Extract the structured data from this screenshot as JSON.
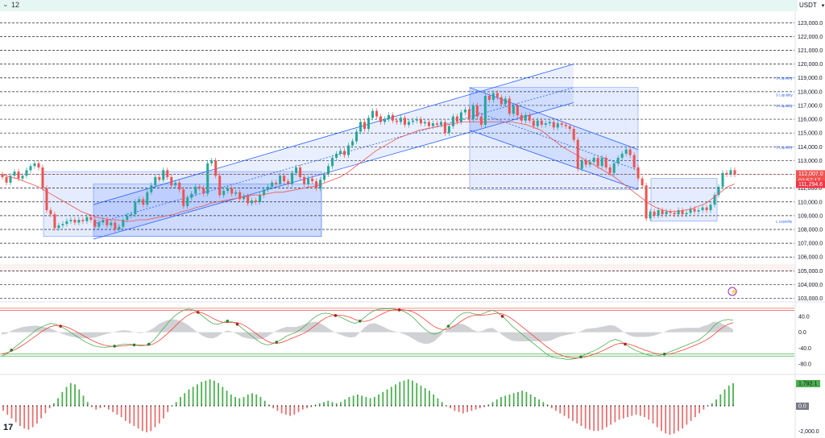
{
  "toolbar": {
    "interval": "12",
    "quote_currency": "USDT"
  },
  "colors": {
    "up": "#26a69a",
    "down": "#ef5350",
    "channel": "#2962ff",
    "k_line": "#4caf50",
    "d_line": "#f44336",
    "hist_up": "#4caf50",
    "hist_down": "#e57373",
    "price_badge": "#ef5350",
    "ma_badge": "#f23645"
  },
  "price_axis": {
    "ticks": [
      "123,000.0",
      "122,000.0",
      "121,000.0",
      "120,000.0",
      "119,000.0",
      "118,000.0",
      "117,000.0",
      "116,000.0",
      "115,000.0",
      "114,000.0",
      "113,000.0",
      "112,000.0",
      "111,000.0",
      "110,000.0",
      "109,000.0",
      "108,000.0",
      "107,000.0",
      "106,000.0",
      "105,000.0",
      "104,000.0",
      "103,000.0"
    ],
    "current_price": "112,007.0",
    "countdown": "02:57:17",
    "ma_value": "111,294.6"
  },
  "liquidity_labels": [
    {
      "text": "S Liquidity",
      "price": 119000
    },
    {
      "text": "S Liquidity",
      "price": 117800
    },
    {
      "text": "S Liquidity",
      "price": 117000
    },
    {
      "text": "S Liquidity",
      "price": 114000
    },
    {
      "text": "L Liquidity",
      "price": 108600
    }
  ],
  "oscillator_axis": {
    "ticks": [
      "40.0",
      "0.0",
      "-40.0",
      "-80.0"
    ]
  },
  "histogram_axis": {
    "ticks": [
      "0.0",
      "-2,000.0"
    ],
    "current_value": "1,792.1",
    "zero_badge": "0.0"
  },
  "chart_data": [
    {
      "type": "candlestick",
      "title": "",
      "ylim": [
        102800,
        123600
      ],
      "y_ticks": [
        123000,
        122000,
        121000,
        120000,
        119000,
        118000,
        117000,
        116000,
        115000,
        114000,
        113000,
        112000,
        111000,
        110000,
        109000,
        108000,
        107000,
        106000,
        105000,
        104000,
        103000
      ],
      "dashed_levels": [
        123000,
        122000,
        121000,
        120000,
        119000,
        118000,
        117000,
        116000,
        115000,
        114000,
        113000,
        112000,
        111000,
        110000,
        109000,
        108000,
        107000,
        106000,
        105000,
        104000,
        103000
      ],
      "closes": [
        111800,
        111400,
        111900,
        112200,
        111700,
        111900,
        112300,
        112600,
        112800,
        112500,
        111000,
        109400,
        109100,
        108100,
        108300,
        108400,
        108600,
        108700,
        108500,
        108700,
        108600,
        108900,
        108700,
        108200,
        108500,
        108700,
        108300,
        108500,
        108000,
        108200,
        108700,
        109000,
        109100,
        110000,
        110200,
        109800,
        110700,
        111200,
        111800,
        111600,
        112300,
        111800,
        111200,
        111400,
        110900,
        109700,
        110300,
        110600,
        111100,
        111000,
        110600,
        112800,
        113000,
        111900,
        110500,
        110800,
        111000,
        110600,
        110700,
        110200,
        110400,
        109900,
        110100,
        110000,
        110500,
        110900,
        111100,
        111400,
        111300,
        111900,
        111500,
        111300,
        112100,
        112500,
        111800,
        111300,
        111700,
        111500,
        111000,
        111600,
        112000,
        112600,
        113200,
        113500,
        113700,
        113400,
        114100,
        114400,
        115100,
        115800,
        115300,
        116100,
        116600,
        116200,
        115800,
        116000,
        116300,
        115900,
        115800,
        116100,
        115600,
        115800,
        115900,
        116000,
        115700,
        115800,
        115500,
        115700,
        115600,
        115800,
        115000,
        115500,
        116200,
        115800,
        116500,
        116700,
        116000,
        117000,
        116200,
        115600,
        117700,
        117400,
        117900,
        117600,
        117100,
        117500,
        116400,
        117000,
        116300,
        115900,
        116300,
        115900,
        115500,
        115900,
        115600,
        115700,
        115800,
        115400,
        115700,
        115600,
        115500,
        115300,
        114500,
        112400,
        113000,
        112700,
        112900,
        113200,
        112600,
        113200,
        112500,
        112100,
        112800,
        113200,
        113500,
        113800,
        113400,
        112500,
        111700,
        111200,
        108800,
        109300,
        109000,
        109400,
        109100,
        109300,
        109200,
        109100,
        109400,
        109100,
        109200,
        109500,
        109300,
        109400,
        109600,
        109400,
        109800,
        110500,
        111100,
        112100,
        112000,
        112300,
        112000
      ],
      "ma_closes": [
        112000,
        111800,
        111700,
        111500,
        111300,
        111100,
        110800,
        110500,
        110200,
        109900,
        109600,
        109300,
        109100,
        108900,
        108800,
        108700,
        108700,
        108600,
        108600,
        108700,
        108700,
        108800,
        108900,
        109000,
        109100,
        109300,
        109400,
        109600,
        109700,
        109900,
        110000,
        110100,
        110200,
        110300,
        110400,
        110500,
        110500,
        110600,
        110700,
        110700,
        110800,
        110900,
        111000,
        111100,
        111200,
        111400,
        111600,
        111800,
        112100,
        112500,
        112900,
        113300,
        113700,
        114000,
        114300,
        114600,
        114800,
        115000,
        115200,
        115300,
        115400,
        115500,
        115600,
        115700,
        115800,
        115800,
        115800,
        115800,
        115800,
        115800,
        115800,
        115800,
        115700,
        115600,
        115400,
        115200,
        114800,
        114400,
        114000,
        113700,
        113400,
        113100,
        112800,
        112500,
        112200,
        111900,
        111500,
        111100,
        110700,
        110300,
        109900,
        109600,
        109400,
        109300,
        109300,
        109400,
        109500,
        109700,
        109900,
        110300,
        110700,
        111100,
        111300
      ],
      "channels": [
        {
          "name": "ascending-channel",
          "upper": [
            [
              116,
              109800
            ],
            [
              712,
              120000
            ]
          ],
          "lower": [
            [
              116,
              107300
            ],
            [
              712,
              117200
            ]
          ],
          "midline": [
            [
              116,
              108400
            ],
            [
              712,
              118300
            ]
          ]
        },
        {
          "name": "descending-channel",
          "upper": [
            [
              583,
              118300
            ],
            [
              792,
              113800
            ]
          ],
          "lower": [
            [
              583,
              115200
            ],
            [
              792,
              110900
            ]
          ],
          "midline": [
            [
              583,
              116700
            ],
            [
              792,
              112300
            ]
          ]
        }
      ],
      "zones": [
        {
          "name": "range-box",
          "price_top": 112200,
          "price_bottom": 107500
        },
        {
          "name": "ascending-zone",
          "price_top": 111300,
          "price_bottom": 107500
        },
        {
          "name": "descending-zone",
          "price_top": 118300,
          "price_bottom": 110900
        },
        {
          "name": "cup-zone",
          "price_top": 111700,
          "price_bottom": 108600
        },
        {
          "name": "support-band",
          "price_top": 105500,
          "price_bottom": 104900
        }
      ]
    },
    {
      "type": "line",
      "title": "",
      "ylim": [
        -100,
        70
      ],
      "y_ticks": [
        40,
        0,
        -40,
        -80
      ],
      "levels": [
        60,
        55,
        -60,
        -55
      ],
      "series": [
        {
          "values": [
            -60,
            -55,
            -45,
            -35,
            -25,
            -15,
            -5,
            5,
            12,
            18,
            22,
            20,
            15,
            8,
            0,
            -8,
            -16,
            -24,
            -30,
            -35,
            -37,
            -38,
            -37,
            -35,
            -32,
            -30,
            -30,
            -32,
            -34,
            -34,
            -30,
            -20,
            -5,
            10,
            25,
            38,
            48,
            55,
            58,
            56,
            50,
            40,
            30,
            22,
            20,
            24,
            28,
            26,
            20,
            10,
            0,
            -10,
            -20,
            -28,
            -32,
            -30,
            -25,
            -18,
            -10,
            -5,
            0,
            8,
            18,
            30,
            40,
            46,
            48,
            46,
            42,
            38,
            32,
            26,
            22,
            28,
            38,
            48,
            55,
            58,
            59,
            59,
            58,
            56,
            52,
            45,
            35,
            22,
            10,
            0,
            -5,
            -2,
            5,
            15,
            28,
            40,
            48,
            50,
            47,
            44,
            46,
            52,
            55,
            50,
            40,
            28,
            15,
            5,
            -5,
            -15,
            -25,
            -35,
            -45,
            -55,
            -62,
            -65,
            -66,
            -68,
            -68,
            -66,
            -62,
            -55,
            -50,
            -45,
            -38,
            -30,
            -22,
            -18,
            -22,
            -30,
            -38,
            -45,
            -50,
            -55,
            -58,
            -60,
            -58,
            -55,
            -50,
            -45,
            -40,
            -35,
            -30,
            -25,
            -20,
            -10,
            0,
            15,
            25,
            30,
            32,
            30
          ]
        },
        {
          "values": [
            -55,
            -52,
            -48,
            -42,
            -35,
            -27,
            -18,
            -9,
            0,
            8,
            14,
            17,
            17,
            14,
            9,
            3,
            -4,
            -11,
            -18,
            -24,
            -29,
            -33,
            -35,
            -36,
            -35,
            -34,
            -33,
            -32,
            -32,
            -33,
            -33,
            -29,
            -22,
            -12,
            -1,
            11,
            23,
            34,
            43,
            49,
            51,
            48,
            42,
            35,
            29,
            25,
            24,
            25,
            24,
            20,
            13,
            4,
            -5,
            -14,
            -22,
            -27,
            -28,
            -26,
            -21,
            -16,
            -11,
            -6,
            0,
            9,
            18,
            28,
            36,
            41,
            43,
            43,
            41,
            37,
            32,
            28,
            27,
            30,
            36,
            43,
            49,
            54,
            56,
            57,
            56,
            54,
            50,
            43,
            34,
            24,
            15,
            9,
            6,
            8,
            14,
            22,
            31,
            38,
            42,
            43,
            43,
            44,
            46,
            48,
            46,
            41,
            33,
            24,
            14,
            4,
            -6,
            -16,
            -26,
            -36,
            -45,
            -53,
            -58,
            -62,
            -64,
            -65,
            -64,
            -62,
            -58,
            -54,
            -49,
            -43,
            -37,
            -31,
            -28,
            -28,
            -31,
            -35,
            -40,
            -45,
            -49,
            -53,
            -55,
            -56,
            -55,
            -52,
            -48,
            -44,
            -39,
            -34,
            -29,
            -23,
            -16,
            -7,
            4,
            13,
            20,
            24
          ]
        }
      ]
    },
    {
      "type": "bar",
      "title": "",
      "ylim": [
        -2300,
        2300
      ],
      "y_ticks": [
        0,
        -2000
      ],
      "values": [
        -400,
        -700,
        -1000,
        -1300,
        -1600,
        -1800,
        -1900,
        -1700,
        -1400,
        -1000,
        -600,
        -200,
        200,
        600,
        1100,
        1500,
        1800,
        1700,
        1300,
        800,
        300,
        -100,
        -300,
        -200,
        -100,
        -300,
        -500,
        -700,
        -900,
        -1200,
        -1400,
        -1600,
        -1800,
        -2000,
        -2100,
        -2000,
        -1700,
        -1400,
        -1000,
        -500,
        0,
        300,
        700,
        1000,
        1300,
        1500,
        1700,
        1900,
        2000,
        2100,
        2000,
        1800,
        1500,
        1200,
        900,
        700,
        600,
        700,
        900,
        1000,
        900,
        700,
        400,
        100,
        -200,
        -400,
        -600,
        -700,
        -800,
        -700,
        -500,
        -300,
        -200,
        -100,
        100,
        200,
        300,
        400,
        300,
        200,
        300,
        500,
        700,
        800,
        900,
        800,
        700,
        600,
        700,
        900,
        1100,
        1300,
        1500,
        1700,
        1900,
        2000,
        2100,
        2000,
        1800,
        1600,
        1400,
        1200,
        900,
        600,
        300,
        0,
        -200,
        -400,
        -500,
        -600,
        -500,
        -400,
        -300,
        -200,
        -100,
        100,
        300,
        500,
        700,
        800,
        900,
        1000,
        1100,
        1200,
        1100,
        900,
        700,
        500,
        300,
        100,
        -200,
        -400,
        -600,
        -800,
        -1000,
        -1200,
        -1400,
        -1600,
        -1800,
        -1900,
        -2000,
        -2000,
        -1900,
        -1700,
        -1500,
        -1300,
        -1100,
        -1000,
        -900,
        -800,
        -700,
        -800,
        -900,
        -1100,
        -1400,
        -1700,
        -2000,
        -2200,
        -2300,
        -2200,
        -2000,
        -1800,
        -1500,
        -1200,
        -900,
        -600,
        -300,
        0,
        200,
        500,
        900,
        1300,
        1600,
        1792
      ]
    }
  ]
}
